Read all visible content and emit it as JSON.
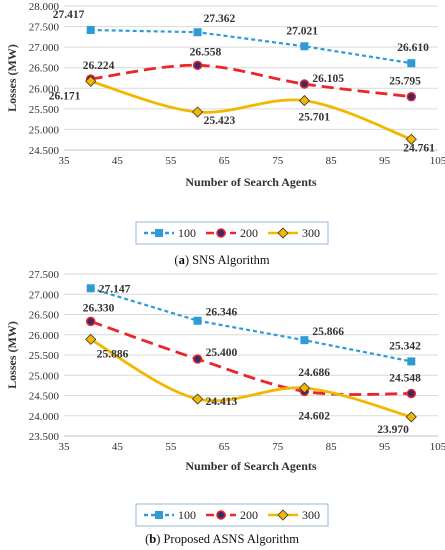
{
  "chart_data": [
    {
      "type": "line",
      "caption_letter": "a",
      "caption_rest": " SNS Algorithm",
      "xlabel": "Number of Search Agents",
      "ylabel": "Losses (MW)",
      "xlim": [
        35,
        105
      ],
      "xticks": [
        35,
        45,
        55,
        65,
        75,
        85,
        95,
        105
      ],
      "ylim": [
        24.5,
        28.0
      ],
      "yticks": [
        "24.500",
        "25.000",
        "25.500",
        "26.000",
        "26.500",
        "27.000",
        "27.500",
        "28.000"
      ],
      "grid": "horizontal",
      "legend_position": "bottom",
      "x": [
        40,
        60,
        80,
        100
      ],
      "series": [
        {
          "name": "100",
          "color": "#2E9BD6",
          "marker": "square",
          "style": "dotted",
          "values": [
            27.417,
            27.362,
            27.021,
            26.61
          ],
          "labels": [
            "27.417",
            "27.362",
            "27.021",
            "26.610"
          ]
        },
        {
          "name": "200",
          "color": "#E8262B",
          "marker": "circle",
          "style": "dashed",
          "values": [
            26.224,
            26.558,
            26.105,
            25.795
          ],
          "labels": [
            "26.224",
            "26.558",
            "26.105",
            "25.795"
          ]
        },
        {
          "name": "300",
          "color": "#F2B700",
          "marker": "diamond",
          "style": "solid",
          "values": [
            26.171,
            25.423,
            25.701,
            24.761
          ],
          "labels": [
            "26.171",
            "25.423",
            "25.701",
            "24.761"
          ]
        }
      ]
    },
    {
      "type": "line",
      "caption_letter": "b",
      "caption_rest": " Proposed ASNS Algorithm",
      "xlabel": "Number of Search Agents",
      "ylabel": "Losses (MW)",
      "xlim": [
        35,
        105
      ],
      "xticks": [
        35,
        45,
        55,
        65,
        75,
        85,
        95,
        105
      ],
      "ylim": [
        23.5,
        27.5
      ],
      "yticks": [
        "23.500",
        "24.000",
        "24.500",
        "25.000",
        "25.500",
        "26.000",
        "26.500",
        "27.000",
        "27.500"
      ],
      "grid": "horizontal",
      "legend_position": "bottom",
      "x": [
        40,
        60,
        80,
        100
      ],
      "series": [
        {
          "name": "100",
          "color": "#2E9BD6",
          "marker": "square",
          "style": "dotted",
          "values": [
            27.147,
            26.346,
            25.866,
            25.342
          ],
          "labels": [
            "27.147",
            "26.346",
            "25.866",
            "25.342"
          ]
        },
        {
          "name": "200",
          "color": "#E8262B",
          "marker": "circle",
          "style": "dashed",
          "values": [
            26.33,
            25.4,
            24.602,
            24.548
          ],
          "labels": [
            "26.330",
            "25.400",
            "24.602",
            "24.548"
          ]
        },
        {
          "name": "300",
          "color": "#F2B700",
          "marker": "diamond",
          "style": "solid",
          "values": [
            25.886,
            24.413,
            24.686,
            23.97
          ],
          "labels": [
            "25.886",
            "24.413",
            "24.686",
            "23.970"
          ]
        }
      ]
    }
  ]
}
